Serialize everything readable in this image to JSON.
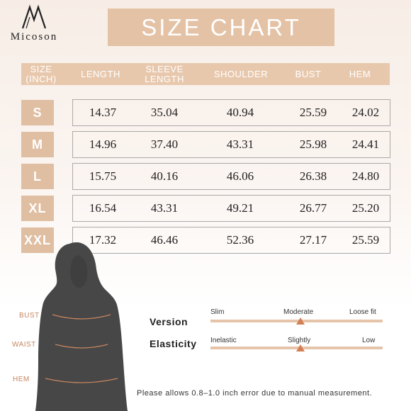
{
  "brand": {
    "name": "Micoson"
  },
  "title": "SIZE CHART",
  "table": {
    "headers": {
      "size": "SIZE\n(INCH)",
      "length": "LENGTH",
      "sleeve": "SLEEVE\nLENGTH",
      "shoulder": "SHOULDER",
      "bust": "BUST",
      "hem": "HEM"
    },
    "rows": [
      {
        "size": "S",
        "length": "14.37",
        "sleeve": "35.04",
        "shoulder": "40.94",
        "bust": "25.59",
        "hem": "24.02"
      },
      {
        "size": "M",
        "length": "14.96",
        "sleeve": "37.40",
        "shoulder": "43.31",
        "bust": "25.98",
        "hem": "24.41"
      },
      {
        "size": "L",
        "length": "15.75",
        "sleeve": "40.16",
        "shoulder": "46.06",
        "bust": "26.38",
        "hem": "24.80"
      },
      {
        "size": "XL",
        "length": "16.54",
        "sleeve": "43.31",
        "shoulder": "49.21",
        "bust": "26.77",
        "hem": "25.20"
      },
      {
        "size": "XXL",
        "length": "17.32",
        "sleeve": "46.46",
        "shoulder": "52.36",
        "bust": "27.17",
        "hem": "25.59"
      }
    ]
  },
  "body_labels": {
    "bust": "BUST",
    "waist": "WAIST",
    "hem": "HEM"
  },
  "scales": {
    "version": {
      "title": "Version",
      "left": "Slim",
      "middle": "Moderate",
      "right": "Loose fit",
      "marker": "middle"
    },
    "elasticity": {
      "title": "Elasticity",
      "left": "Inelastic",
      "middle": "Slightly",
      "right": "Low",
      "marker": "middle"
    }
  },
  "note": "Please allows 0.8–1.0 inch error due to manual measurement.",
  "colors": {
    "accent": "#e4c2a6",
    "marker": "#d37f55",
    "label": "#c6855f"
  }
}
